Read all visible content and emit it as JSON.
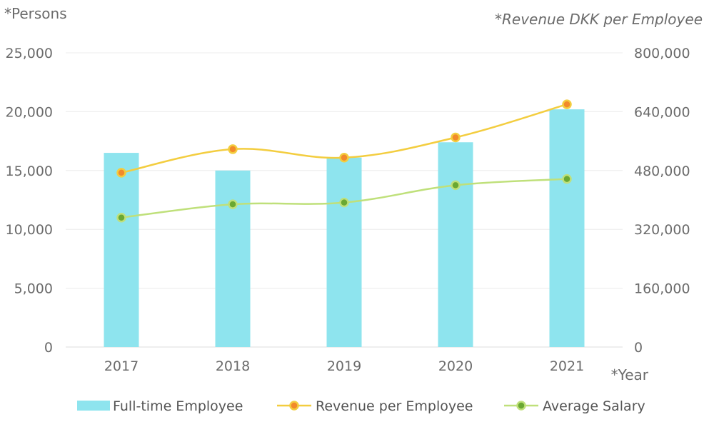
{
  "chart_data": {
    "type": "bar",
    "categories": [
      "2017",
      "2018",
      "2019",
      "2020",
      "2021"
    ],
    "y_left": {
      "label": "*Persons",
      "range": [
        0,
        25000
      ],
      "ticks": [
        0,
        5000,
        10000,
        15000,
        20000,
        25000
      ],
      "tick_labels": [
        "0",
        "5,000",
        "10,000",
        "15,000",
        "20,000",
        "25,000"
      ]
    },
    "y_right": {
      "label": "*Revenue DKK per Employee",
      "range": [
        0,
        800000
      ],
      "ticks": [
        0,
        160000,
        320000,
        480000,
        640000,
        800000
      ],
      "tick_labels": [
        "0",
        "160,000",
        "320,000",
        "480,000",
        "640,000",
        "800,000"
      ]
    },
    "xlabel": "*Year",
    "series": [
      {
        "name": "Full-time Employee",
        "type": "bar",
        "axis": "left",
        "color": "#8ee4ee",
        "values": [
          16500,
          15000,
          16100,
          17400,
          20200
        ]
      },
      {
        "name": "Revenue per Employee",
        "type": "line",
        "axis": "right",
        "color": "#f3cd3f",
        "marker_color": "#f28a2a",
        "values": [
          474000,
          538000,
          515000,
          570000,
          660000
        ]
      },
      {
        "name": "Average Salary",
        "type": "line",
        "axis": "right",
        "color": "#bfe07a",
        "marker_color": "#6aa832",
        "values": [
          352000,
          388000,
          393000,
          440000,
          457000
        ]
      }
    ],
    "grid": true,
    "legend_position": "bottom"
  }
}
